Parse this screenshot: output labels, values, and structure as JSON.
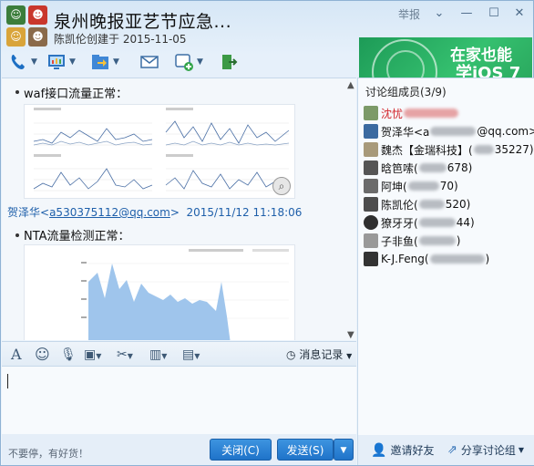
{
  "window": {
    "title": "泉州晚报亚艺节应急...",
    "subtitle": "陈凯伦创建于 2015-11-05",
    "report_label": "举报"
  },
  "ad": {
    "line1": "在家也能",
    "line2": "学iOS 7"
  },
  "toolbar": {
    "icons": [
      "phone-icon",
      "screen-share-icon",
      "file-transfer-icon",
      "mail-icon",
      "add-app-icon",
      "exit-group-icon"
    ]
  },
  "chat": {
    "msg1": "waf接口流量正常：",
    "sender_name": "贺泽华",
    "sender_email": "a530375112@qq.com",
    "sender_time": "2015/11/12 11:18:06",
    "msg2": "NTA流量检测正常："
  },
  "input_toolbar": {
    "history_label": "消息记录"
  },
  "bottom": {
    "ad_text": "不要停，有好货！",
    "close_label": "关闭(C)",
    "send_label": "发送(S)"
  },
  "sidebar": {
    "header": "讨论组成员(3/9)",
    "members": [
      {
        "name": "沈忧",
        "suffix": "",
        "color": "#d2232a"
      },
      {
        "name": "贺泽华<a",
        "suffix": "@qq.com>",
        "color": "#111"
      },
      {
        "name": "魏杰【金瑞科技】(",
        "suffix": "35227)",
        "color": "#111"
      },
      {
        "name": "晗笆嗦(",
        "suffix": "678)",
        "color": "#111"
      },
      {
        "name": "阿坤(",
        "suffix": "70)",
        "color": "#111"
      },
      {
        "name": "陈凯伦(",
        "suffix": "520)",
        "color": "#111"
      },
      {
        "name": "獠牙牙(",
        "suffix": "44)",
        "color": "#111"
      },
      {
        "name": "子非鱼(",
        "suffix": ")",
        "color": "#111"
      },
      {
        "name": "K-J.Feng(",
        "suffix": ")",
        "color": "#111"
      }
    ],
    "invite_label": "邀请好友",
    "share_label": "分享讨论组"
  },
  "colors": {
    "accent": "#1f73c9",
    "link": "#1e5faa",
    "chart_fill": "#9fc5ec"
  }
}
